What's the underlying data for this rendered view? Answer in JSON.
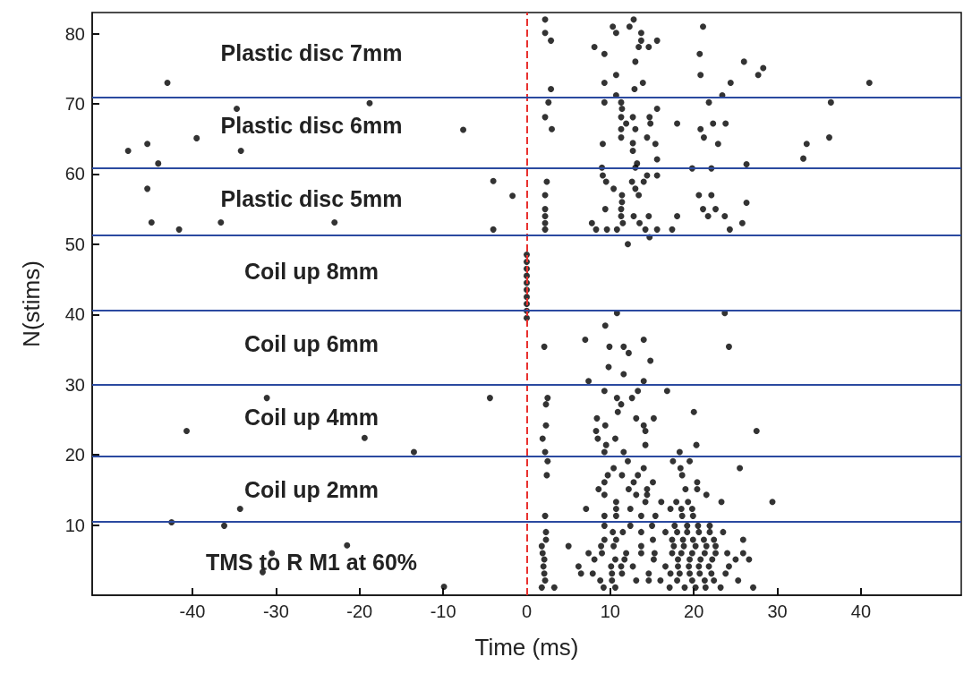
{
  "chart_data": {
    "type": "scatter",
    "xlabel": "Time (ms)",
    "ylabel": "N(stims)",
    "xlim": [
      -52,
      52
    ],
    "xticks": [
      -40,
      -30,
      -20,
      -10,
      0,
      10,
      20,
      30,
      40
    ],
    "ylim": [
      0,
      83
    ],
    "yticks": [
      10,
      20,
      30,
      40,
      50,
      60,
      70,
      80
    ],
    "grid": false,
    "marker": "circle",
    "series": [
      {
        "color": "#000000",
        "x": [
          -31.1,
          -4.4,
          -40.7,
          -19.4,
          -13.5,
          -34.3,
          -42.5,
          -36.2,
          -30.5,
          -21.5,
          -31.6,
          -9.9,
          -43.0,
          -34.7,
          -18.8,
          -7.6,
          -47.7,
          -45.4,
          -39.5,
          -34.2,
          -44.1,
          -45.4,
          -44.9,
          -41.6,
          -36.6,
          -23.0,
          -4.0,
          -4.0,
          -1.7,
          27.7,
          28.3,
          41.0,
          36.4,
          36.2,
          33.5,
          33.1,
          2.2,
          2.2,
          2.9,
          10.3,
          10.7,
          12.3,
          12.8,
          13.7,
          13.7,
          13.4,
          14.6,
          15.6,
          8.1,
          9.3,
          13.0,
          21.1,
          20.7,
          20.8,
          26.0,
          10.7,
          9.3,
          13.9,
          12.9,
          2.9,
          24.4,
          10.7,
          23.4,
          2.6,
          9.3,
          11.3,
          11.4,
          15.6,
          21.8,
          2.2,
          11.3,
          12.7,
          14.7,
          11.9,
          14.8,
          18.0,
          22.3,
          23.8,
          3.0,
          11.3,
          13.0,
          20.8,
          11.3,
          14.4,
          21.2,
          9.1,
          12.7,
          15.4,
          22.9,
          12.7,
          15.6,
          9.0,
          13.0,
          19.8,
          22.1,
          26.3,
          13.2,
          9.1,
          14.4,
          15.6,
          2.4,
          9.5,
          12.6,
          14.0,
          10.4,
          13.0,
          2.2,
          11.4,
          13.4,
          20.6,
          22.1,
          11.4,
          26.3,
          2.2,
          9.4,
          11.3,
          21.1,
          22.6,
          2.2,
          11.3,
          12.8,
          14.6,
          18.0,
          21.7,
          23.7,
          2.2,
          7.8,
          11.5,
          13.5,
          25.8,
          2.2,
          8.3,
          9.6,
          10.8,
          14.2,
          15.6,
          17.4,
          24.3,
          14.7,
          12.1,
          0,
          0,
          0,
          0,
          0,
          0,
          0,
          0,
          0,
          0,
          10.8,
          23.7,
          9.4,
          7.0,
          14.0,
          2.1,
          9.9,
          11.6,
          24.2,
          12.2,
          14.8,
          9.8,
          11.6,
          7.4,
          14.0,
          9.3,
          13.3,
          16.8,
          2.5,
          10.8,
          12.6,
          2.3,
          11.3,
          10.9,
          20.0,
          8.4,
          13.1,
          15.2,
          2.3,
          9.4,
          14.0,
          8.3,
          14.2,
          27.5,
          1.9,
          8.5,
          10.6,
          9.5,
          14.2,
          20.3,
          2.2,
          9.3,
          11.6,
          18.3,
          2.5,
          12.1,
          17.5,
          19.5,
          10.4,
          14.0,
          18.4,
          25.5,
          2.4,
          9.7,
          11.4,
          13.3,
          18.6,
          9.3,
          12.8,
          15.1,
          20.4,
          8.6,
          12.2,
          14.4,
          19.0,
          20.4,
          9.3,
          13.1,
          14.4,
          21.5,
          10.7,
          14.2,
          16.1,
          17.9,
          19.3,
          23.3,
          29.4,
          7.1,
          10.7,
          12.4,
          17.2,
          18.5,
          19.8,
          2.2,
          9.3,
          10.7,
          13.7,
          15.4,
          18.6,
          19.9,
          9.3,
          12.4,
          15.0,
          17.7,
          19.2,
          20.5,
          21.9,
          2.3,
          10.3,
          11.5,
          13.7,
          16.6,
          18.0,
          19.2,
          20.6,
          21.9,
          23.5,
          2.3,
          9.3,
          10.7,
          15.1,
          17.4,
          18.7,
          19.9,
          21.2,
          22.4,
          25.9,
          1.8,
          5.0,
          8.9,
          10.4,
          13.7,
          17.6,
          18.8,
          20.2,
          21.5,
          22.6,
          1.9,
          7.4,
          9.0,
          11.9,
          13.7,
          15.3,
          17.4,
          18.5,
          19.8,
          21.3,
          22.6,
          24.0,
          25.9,
          2.1,
          8.1,
          10.6,
          11.7,
          15.2,
          18.1,
          19.5,
          20.8,
          22.2,
          25.0,
          26.6,
          2.0,
          6.2,
          10.1,
          11.3,
          12.7,
          16.6,
          18.1,
          19.4,
          20.6,
          21.8,
          24.2,
          2.1,
          6.5,
          7.9,
          10.2,
          11.4,
          14.6,
          17.2,
          18.3,
          19.5,
          20.7,
          22.1,
          23.8,
          2.2,
          8.8,
          10.2,
          13.1,
          14.6,
          16.0,
          18.0,
          19.8,
          21.3,
          22.4,
          25.3,
          1.8,
          3.3,
          9.2,
          10.6,
          17.1,
          18.9,
          20.2,
          21.4,
          23.2,
          27.1
        ],
        "values": [
          28.1,
          28.1,
          23.4,
          22.4,
          20.4,
          12.3,
          10.4,
          9.9,
          6.0,
          7.1,
          3.3,
          1.2,
          73,
          69.3,
          70.1,
          66.3,
          63.3,
          64.3,
          65.1,
          63.3,
          61.5,
          57.9,
          53.1,
          52.1,
          53.1,
          53.1,
          59,
          52.1,
          56.9,
          74.1,
          75.1,
          73,
          70.2,
          65.2,
          64.3,
          62.2,
          82,
          80.1,
          79,
          81,
          80.1,
          81,
          82,
          80.1,
          79,
          78.1,
          78.1,
          79,
          78.1,
          77.1,
          76,
          81,
          77.1,
          74.1,
          76,
          74.1,
          73,
          73,
          72.1,
          72.1,
          73,
          71.2,
          71.2,
          70.2,
          70.2,
          70.2,
          69.3,
          69.3,
          70.2,
          68.1,
          68.1,
          68.1,
          68.1,
          67.2,
          67.2,
          67.2,
          67.2,
          67.2,
          66.4,
          66.4,
          66.4,
          66.4,
          65.2,
          65.2,
          65.2,
          64.3,
          64.4,
          64.3,
          64.3,
          63.3,
          62.1,
          60.9,
          60.9,
          60.8,
          60.8,
          61.4,
          61.5,
          59.8,
          59.8,
          59.8,
          58.9,
          58.9,
          58.9,
          58.9,
          57.9,
          57.9,
          57,
          57,
          57,
          57,
          57,
          56,
          55.9,
          55,
          55,
          55,
          55,
          55,
          54,
          54,
          54,
          54,
          54,
          54,
          54,
          53,
          53,
          53,
          53,
          53,
          52.1,
          52.1,
          52.1,
          52.1,
          52.1,
          52.1,
          52.1,
          52.1,
          51,
          50,
          39.5,
          40.5,
          41.5,
          42.5,
          43.5,
          44.5,
          45.5,
          46.5,
          47.5,
          48.5,
          40.2,
          40.2,
          38.4,
          36.4,
          36.4,
          35.4,
          35.4,
          35.4,
          35.4,
          34.5,
          33.4,
          32.5,
          31.5,
          30.5,
          30.5,
          29.1,
          29.1,
          29.1,
          28.1,
          28.1,
          28.1,
          27.2,
          27.2,
          26.1,
          26.1,
          25.2,
          25.2,
          25.2,
          24.2,
          24.2,
          24.2,
          23.4,
          23.4,
          23.4,
          22.3,
          22.3,
          22.3,
          21.4,
          21.4,
          21.4,
          20.4,
          20.4,
          20.4,
          20.4,
          19.1,
          19.1,
          19.1,
          19.1,
          18.1,
          18.1,
          18.1,
          18.1,
          17.1,
          17.1,
          17.1,
          17.1,
          17.1,
          16.1,
          16.1,
          16.1,
          16.1,
          15.1,
          15.1,
          15.1,
          15.1,
          15.1,
          14.3,
          14.3,
          14.3,
          14.3,
          13.3,
          13.3,
          13.3,
          13.3,
          13.3,
          13.3,
          13.3,
          12.3,
          12.3,
          12.3,
          12.3,
          12.3,
          12.3,
          11.3,
          11.3,
          11.3,
          11.3,
          11.3,
          11.3,
          11.3,
          9.9,
          9.9,
          9.9,
          9.9,
          9.9,
          9.9,
          9.9,
          9.0,
          9.0,
          9.0,
          9.0,
          9.0,
          9.0,
          9.0,
          9.0,
          9.0,
          9.0,
          7.9,
          7.9,
          7.9,
          7.9,
          7.9,
          7.9,
          7.9,
          7.9,
          7.9,
          7.9,
          7.0,
          7.0,
          7.0,
          7.0,
          7.0,
          7.0,
          7.0,
          7.0,
          7.0,
          7.0,
          6.0,
          6.0,
          6.0,
          6.0,
          6.0,
          6.0,
          6.0,
          6.0,
          6.0,
          6.0,
          6.0,
          6.0,
          6.0,
          5.1,
          5.1,
          5.1,
          5.1,
          5.1,
          5.1,
          5.1,
          5.1,
          5.1,
          5.1,
          5.1,
          4.1,
          4.1,
          4.1,
          4.1,
          4.1,
          4.1,
          4.1,
          4.1,
          4.1,
          4.1,
          4.1,
          3.1,
          3.1,
          3.1,
          3.1,
          3.1,
          3.1,
          3.1,
          3.1,
          3.1,
          3.1,
          3.1,
          3.1,
          2.1,
          2.1,
          2.1,
          2.1,
          2.1,
          2.1,
          2.1,
          2.1,
          2.1,
          2.1,
          2.1,
          1.1,
          1.1,
          1.1,
          1.1,
          1.1,
          1.1,
          1.1,
          1.1,
          1.1,
          1.1
        ]
      }
    ],
    "ref_lines": [
      {
        "axis": "x",
        "value": 0,
        "color": "#e8312f",
        "line_style": "dashed"
      },
      {
        "axis": "y",
        "value": 10.5,
        "color": "#2b4aa0",
        "line_style": "solid"
      },
      {
        "axis": "y",
        "value": 19.8,
        "color": "#2b4aa0",
        "line_style": "solid"
      },
      {
        "axis": "y",
        "value": 30,
        "color": "#2b4aa0",
        "line_style": "solid"
      },
      {
        "axis": "y",
        "value": 40.6,
        "color": "#2b4aa0",
        "line_style": "solid"
      },
      {
        "axis": "y",
        "value": 51.3,
        "color": "#2b4aa0",
        "line_style": "solid"
      },
      {
        "axis": "y",
        "value": 60.9,
        "color": "#2b4aa0",
        "line_style": "solid"
      },
      {
        "axis": "y",
        "value": 70.9,
        "color": "#2b4aa0",
        "line_style": "solid"
      }
    ],
    "annotations": [
      "Plastic disc 7mm",
      "Plastic disc 6mm",
      "Plastic disc 5mm",
      "Coil up 8mm",
      "Coil up 6mm",
      "Coil up 4mm",
      "Coil up 2mm",
      "TMS to R M1 at 60%"
    ]
  }
}
